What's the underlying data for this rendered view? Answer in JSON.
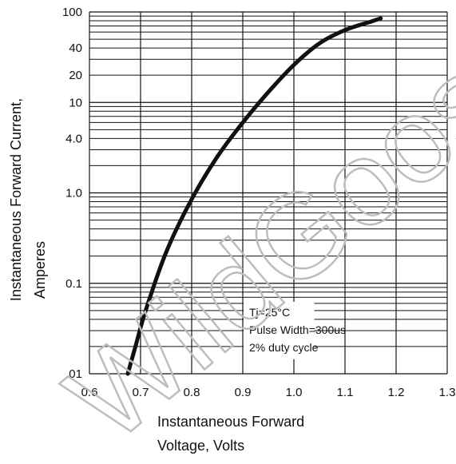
{
  "chart_data": {
    "type": "line",
    "title": "",
    "xlabel": [
      "Instantaneous Forward",
      "Voltage, Volts"
    ],
    "ylabel": [
      "Instantaneous Forward Current,",
      "Amperes"
    ],
    "x_ticks": [
      "0.6",
      "0.7",
      "0.8",
      "0.9",
      "1.0",
      "1.1",
      "1.2",
      "1.3"
    ],
    "y_ticks": [
      {
        "value": 100,
        "label": "100"
      },
      {
        "value": 40,
        "label": "40"
      },
      {
        "value": 20,
        "label": "20"
      },
      {
        "value": 10,
        "label": "10"
      },
      {
        "value": 4,
        "label": "4.0"
      },
      {
        "value": 1,
        "label": "1.0"
      },
      {
        "value": 0.1,
        "label": "0.1"
      },
      {
        "value": 0.01,
        "label": ".01"
      }
    ],
    "xlim": [
      0.6,
      1.3
    ],
    "ylim": [
      0.01,
      100
    ],
    "y_scale": "log",
    "grid": true,
    "series": [
      {
        "x": [
          0.675,
          0.69,
          0.71,
          0.75,
          0.8,
          0.85,
          0.9,
          0.95,
          1.0,
          1.05,
          1.1,
          1.15,
          1.17
        ],
        "y": [
          0.01,
          0.02,
          0.05,
          0.22,
          0.85,
          2.5,
          6.0,
          13.0,
          26.0,
          45.0,
          63.0,
          78.0,
          85.0
        ]
      }
    ],
    "annotations": [
      "Tj=25°C",
      "Pulse Width=300us",
      "2% duty cycle"
    ]
  },
  "watermark": "WildGoose"
}
